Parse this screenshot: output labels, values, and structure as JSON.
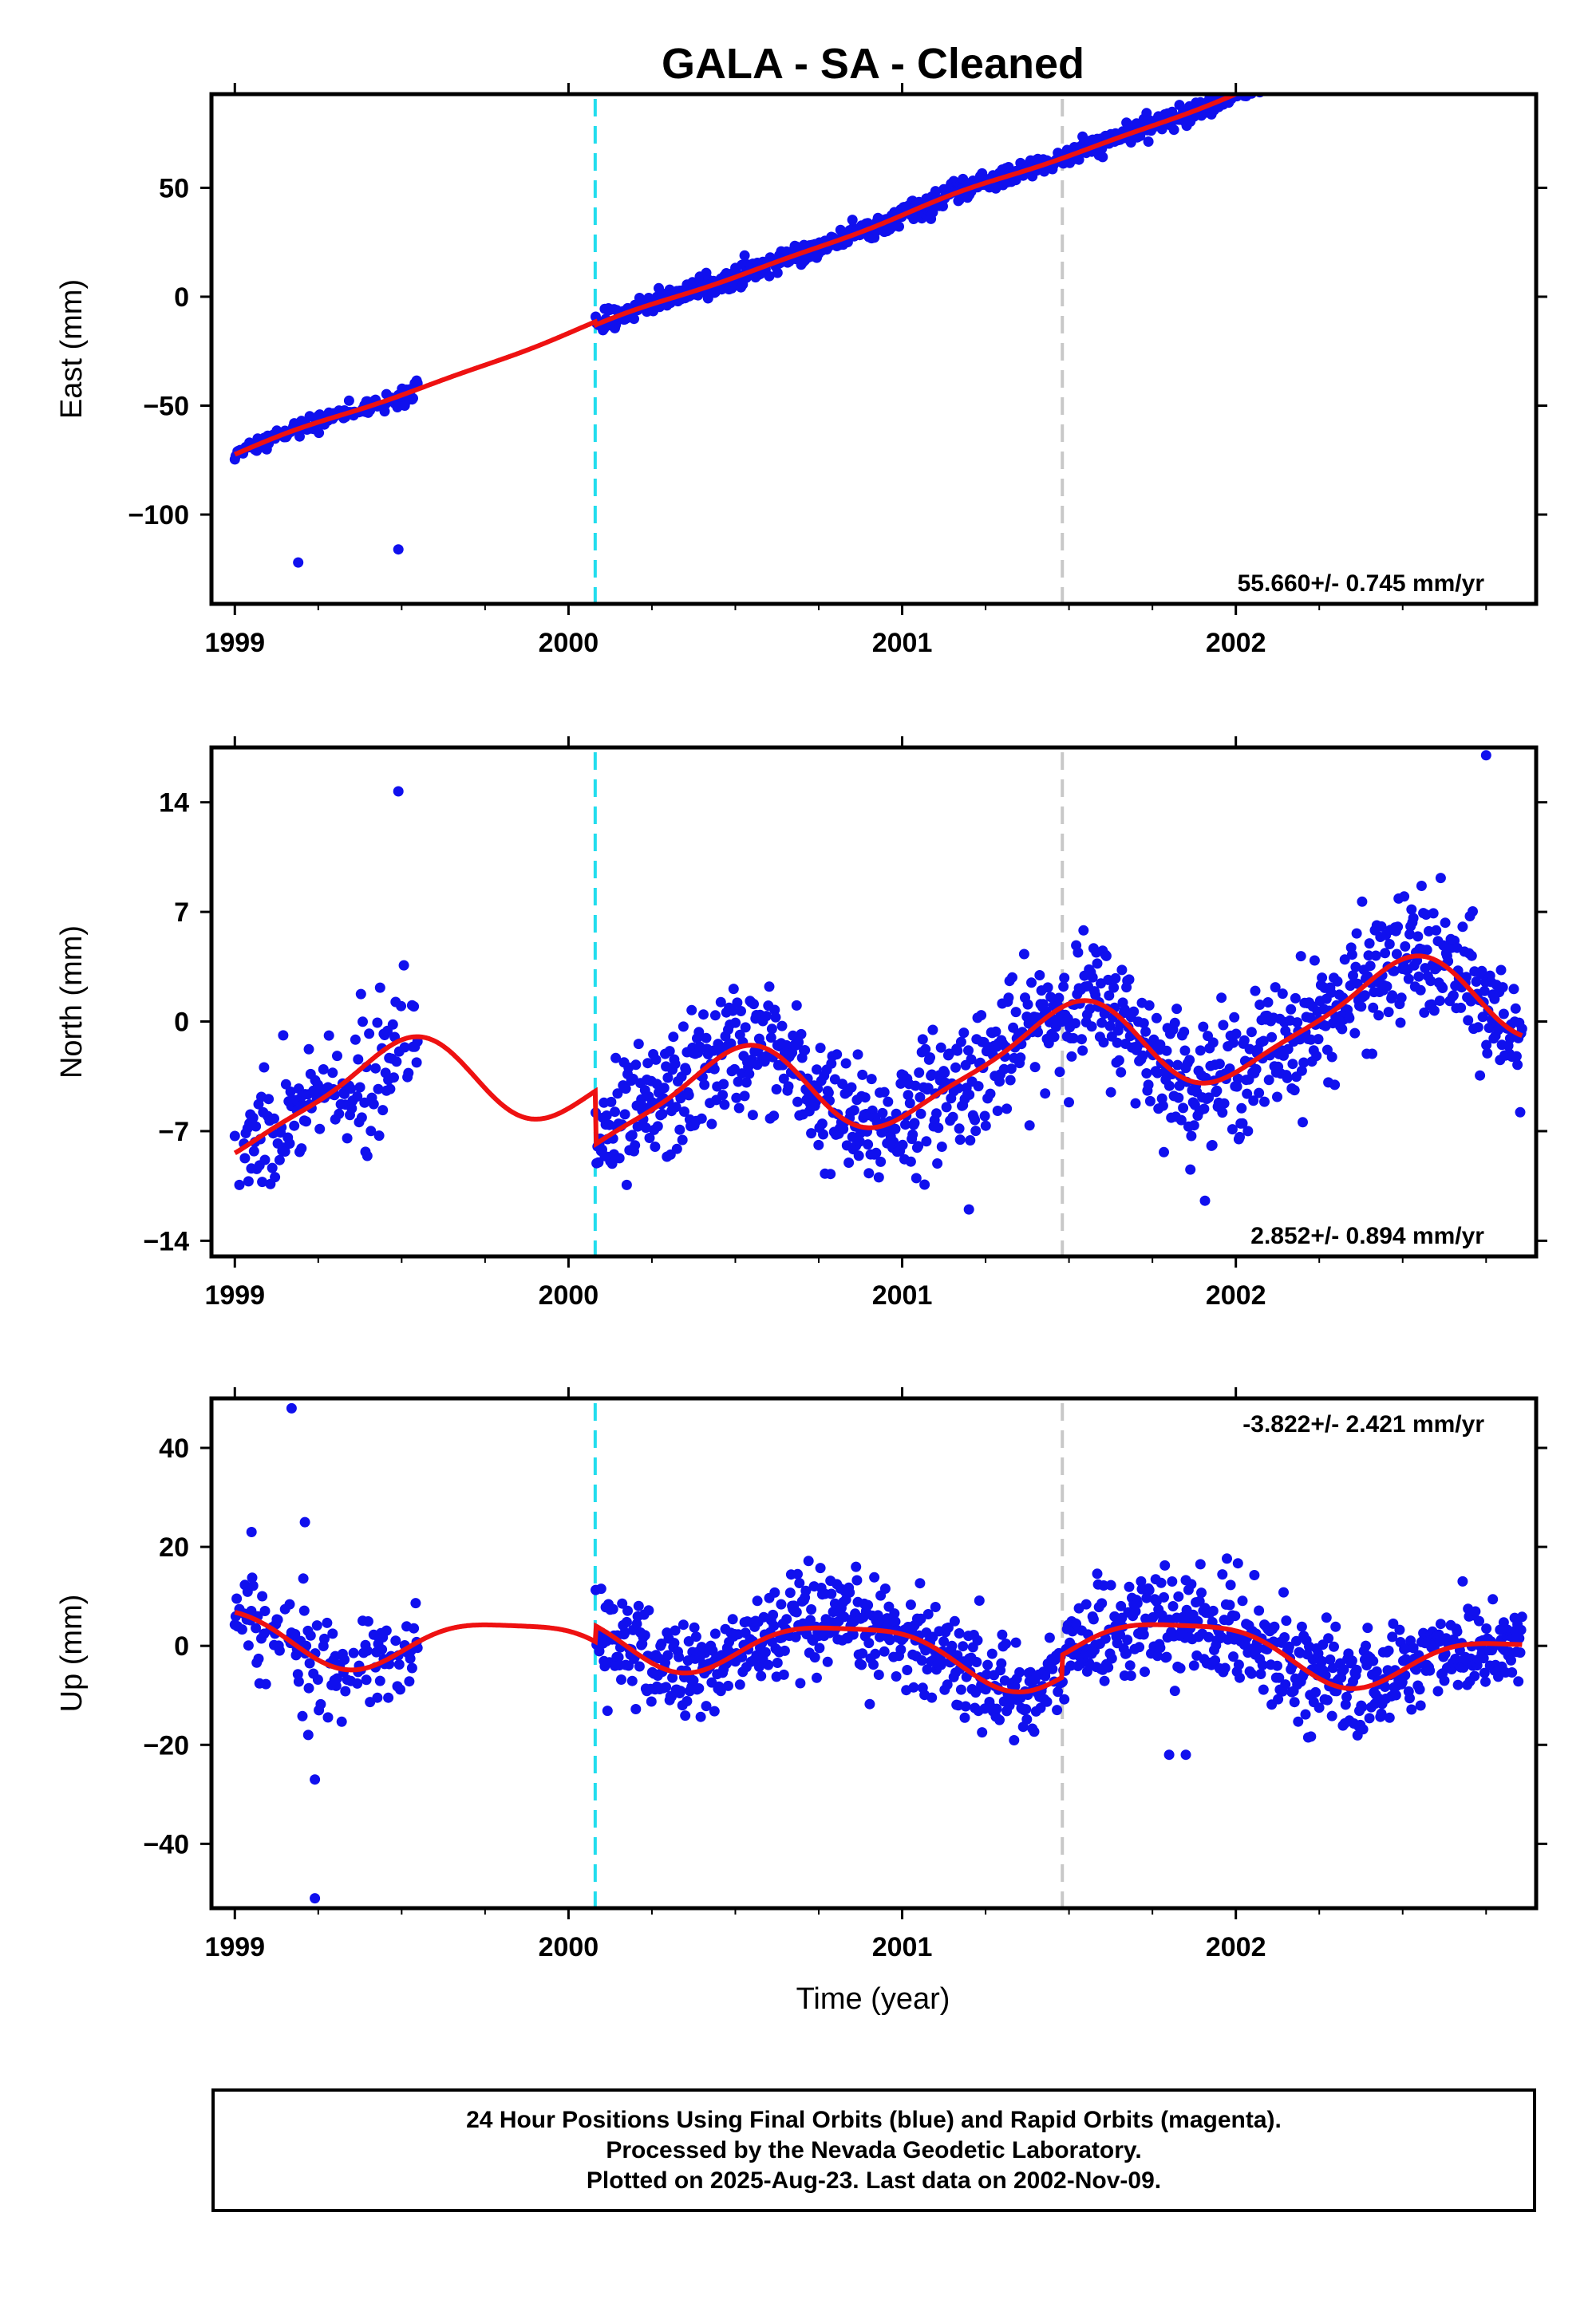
{
  "chart_data": {
    "type": "scatter",
    "title": "GALA  - SA - Cleaned",
    "xlabel": "Time (year)",
    "xlim": [
      1998.93,
      2002.9
    ],
    "x_ticks": [
      "1999",
      "2000",
      "2001",
      "2002"
    ],
    "vertical_lines": [
      {
        "x": 2000.08,
        "color": "#22ddee",
        "style": "dashed"
      },
      {
        "x": 2001.48,
        "color": "#c8c8c8",
        "style": "dashed"
      }
    ],
    "colors": {
      "points": "#1010ee",
      "model": "#ee1111",
      "frame": "#000000"
    },
    "panels": [
      {
        "ylabel": "East (mm)",
        "ylim": [
          -141,
          93
        ],
        "yticks": [
          50,
          0,
          -50,
          -100
        ],
        "rate_text": "55.660+/- 0.745 mm/yr",
        "rate_position": "bottom-right",
        "gaps": [
          [
            1999.55,
            2000.08
          ]
        ],
        "model": {
          "offset": -72.5,
          "rate": 55.66,
          "annual_sin": 0.8,
          "annual_cos": 0.3,
          "semi_sin": 0.4,
          "semi_cos": -0.2,
          "steps": [
            {
              "x": 2000.08,
              "size": -1.5
            }
          ]
        },
        "noise": 2.2,
        "outliers": [
          [
            1999.49,
            -116
          ],
          [
            1999.19,
            -122
          ]
        ]
      },
      {
        "ylabel": "North (mm)",
        "ylim": [
          -15,
          17.5
        ],
        "yticks": [
          14,
          7,
          0,
          -7,
          -14
        ],
        "rate_text": "2.852+/- 0.894 mm/yr",
        "rate_position": "bottom-right",
        "gaps": [
          [
            1999.55,
            2000.08
          ]
        ],
        "model": {
          "offset": -5.8,
          "rate": 2.852,
          "annual_sin": 0.3,
          "annual_cos": -2.9,
          "semi_sin": 0.6,
          "semi_cos": 0.3,
          "steps": [
            {
              "x": 2000.08,
              "size": -3.4
            }
          ]
        },
        "noise": 2.0,
        "outliers": [
          [
            1999.49,
            14.7
          ],
          [
            2001.2,
            -12
          ],
          [
            2002.75,
            17
          ]
        ]
      },
      {
        "ylabel": "Up (mm)",
        "ylim": [
          -53,
          50
        ],
        "yticks": [
          40,
          20,
          0,
          -20,
          -40
        ],
        "rate_text": "-3.822+/- 2.421 mm/yr",
        "rate_position": "top-right",
        "gaps": [
          [
            1999.55,
            2000.08
          ]
        ],
        "model": {
          "offset": 3.2,
          "rate": -3.822,
          "annual_sin": -4.5,
          "annual_cos": 3.0,
          "semi_sin": 1.2,
          "semi_cos": 0.6,
          "steps": [
            {
              "x": 2000.08,
              "size": 3.2
            },
            {
              "x": 2001.48,
              "size": 4.5
            }
          ]
        },
        "noise": 5.0,
        "outliers": [
          [
            1999.05,
            23
          ],
          [
            1999.17,
            48
          ],
          [
            1999.21,
            25
          ],
          [
            1999.22,
            -18
          ],
          [
            1999.24,
            -27
          ],
          [
            1999.24,
            -51
          ],
          [
            2001.85,
            -22
          ],
          [
            2001.8,
            -22
          ]
        ]
      }
    ]
  },
  "footer": {
    "line1": "24 Hour Positions Using Final Orbits (blue) and Rapid Orbits (magenta).",
    "line2": "Processed by the Nevada Geodetic Laboratory.",
    "line3": "Plotted on 2025-Aug-23. Last data on 2002-Nov-09."
  }
}
